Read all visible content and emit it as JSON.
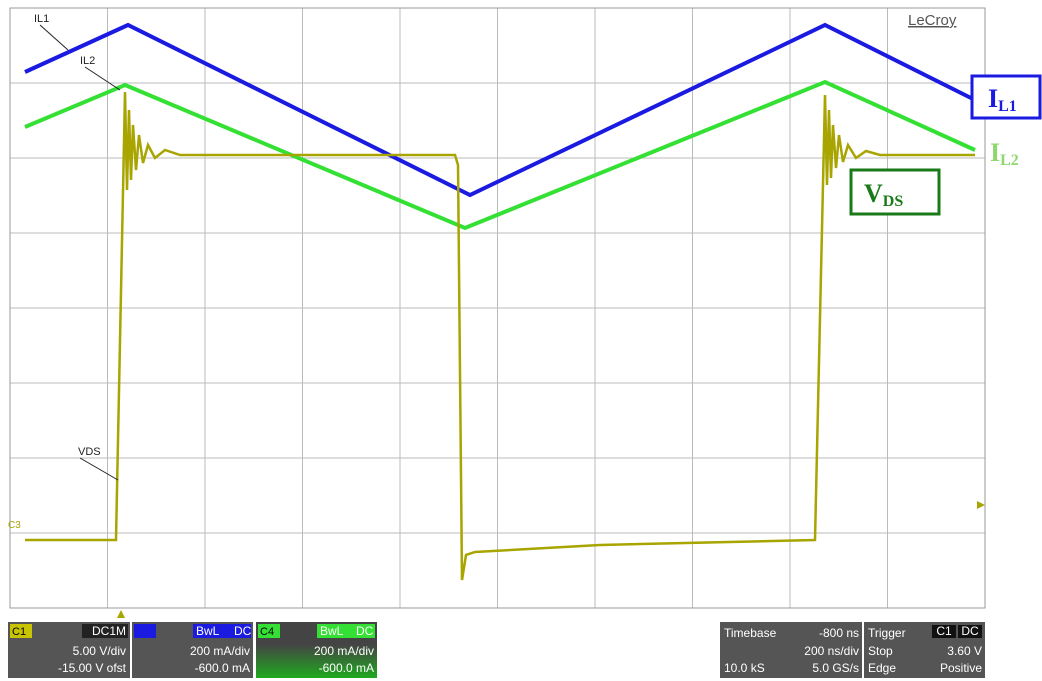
{
  "screen": {
    "brand": "LeCroy",
    "trace_labels": [
      "IL1",
      "IL2",
      "VDS"
    ],
    "channel_marker": "C3",
    "annotations": [
      {
        "text": "I",
        "sub": "L1"
      },
      {
        "text": "I",
        "sub": "L2"
      },
      {
        "text": "V",
        "sub": "DS"
      }
    ],
    "channels": [
      {
        "name": "C1",
        "coupling": "DC1M",
        "scale": "5.00 V/div",
        "offset": "-15.00 V ofst"
      },
      {
        "bw": "BwL",
        "coupling": "DC",
        "scale": "200 mA/div",
        "offset": "-600.0 mA"
      },
      {
        "name": "C4",
        "bw": "BwL",
        "coupling": "DC",
        "scale": "200 mA/div",
        "offset": "-600.0 mA"
      }
    ],
    "timebase": {
      "label": "Timebase",
      "delay": "-800 ns",
      "scale": "200 ns/div",
      "samples": "10.0 kS",
      "rate": "5.0 GS/s"
    },
    "trigger": {
      "label": "Trigger",
      "source": "C1",
      "coupling": "DC",
      "mode": "Stop",
      "level": "3.60 V",
      "type": "Edge",
      "slope": "Positive"
    }
  }
}
